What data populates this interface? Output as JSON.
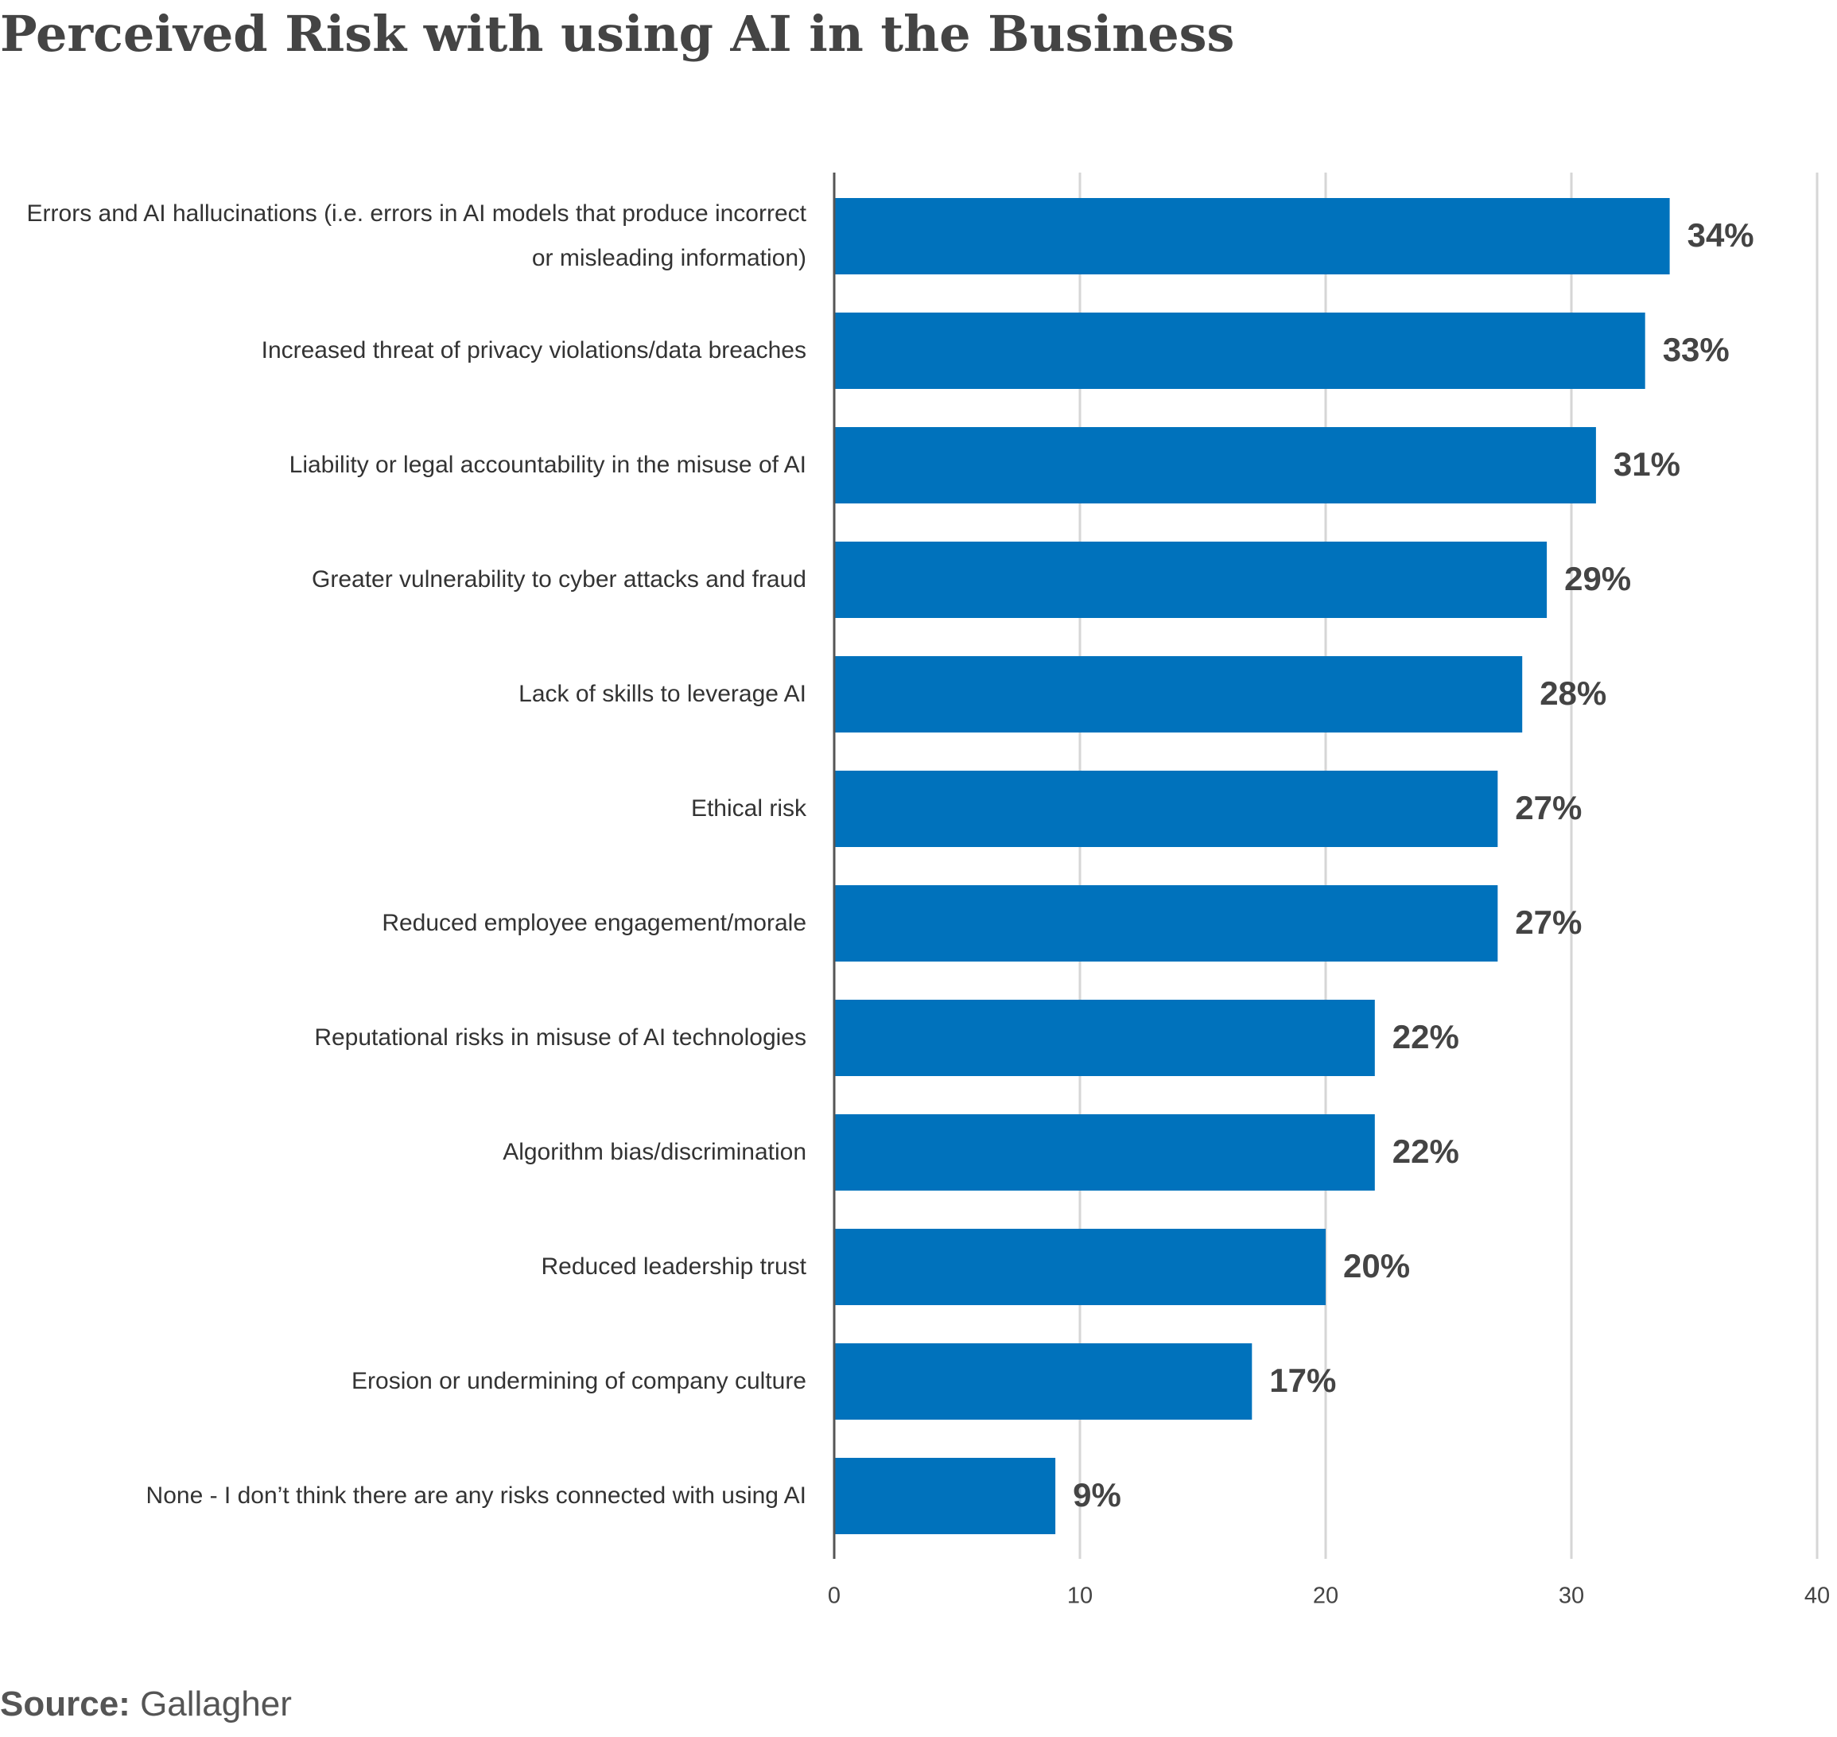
{
  "chart_data": {
    "type": "barh",
    "title": "Perceived Risk with using AI in the Business",
    "categories": [
      "Errors and AI hallucinations (i.e. errors in AI models that produce incorrect or misleading information)",
      "Increased threat of privacy violations/data breaches",
      "Liability or legal accountability in the misuse of AI",
      "Greater vulnerability to cyber attacks and fraud",
      "Lack of skills to leverage AI",
      "Ethical risk",
      "Reduced employee engagement/morale",
      "Reputational risks in misuse of AI technologies",
      "Algorithm bias/discrimination",
      "Reduced leadership trust",
      "Erosion or undermining of company culture",
      "None - I don’t think there are any risks connected with using AI"
    ],
    "values": [
      34,
      33,
      31,
      29,
      28,
      27,
      27,
      22,
      22,
      20,
      17,
      9
    ],
    "value_labels": [
      "34%",
      "33%",
      "31%",
      "29%",
      "28%",
      "27%",
      "27%",
      "22%",
      "22%",
      "20%",
      "17%",
      "9%"
    ],
    "color": "#0072bc",
    "xlim": [
      0,
      40
    ],
    "xticks": [
      0,
      10,
      20,
      30,
      40
    ],
    "grid": true,
    "source_label": "Source:",
    "source": "Gallagher"
  }
}
